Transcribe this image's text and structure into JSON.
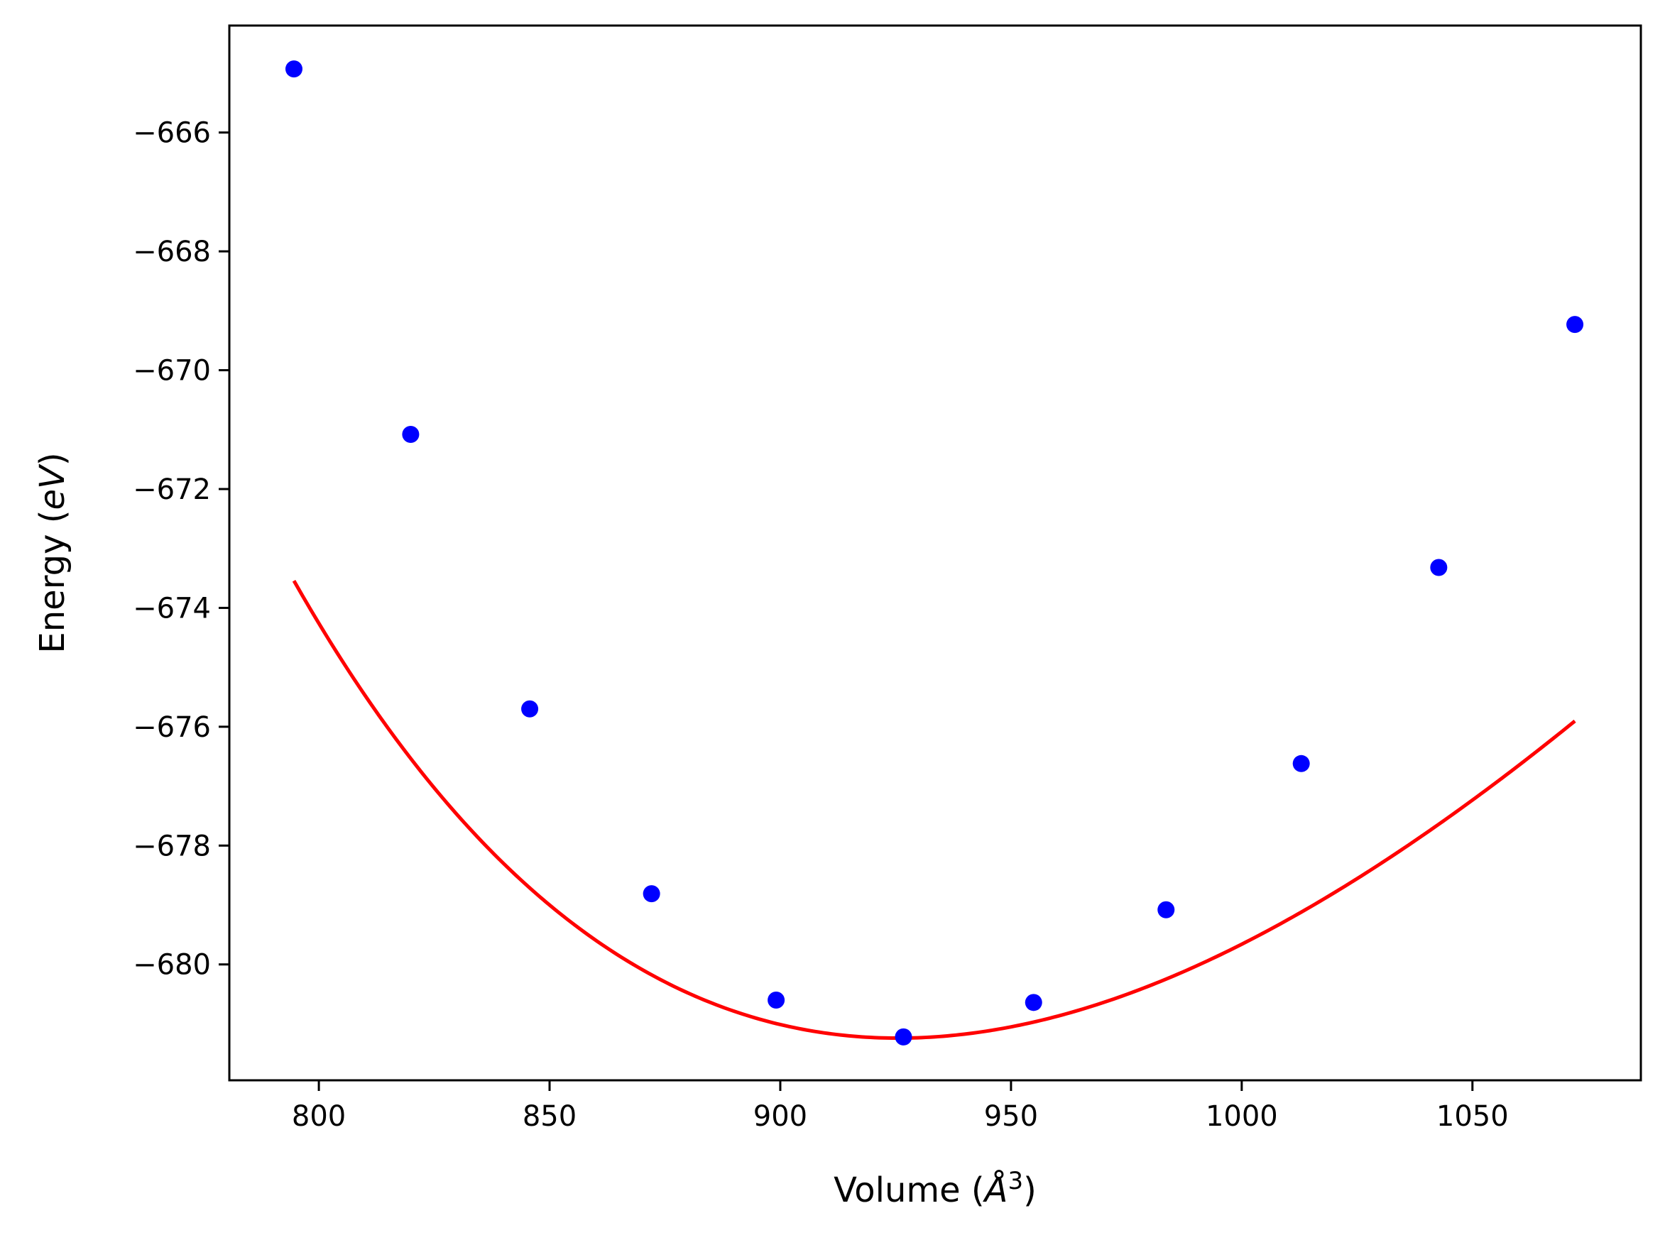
{
  "chart_data": {
    "type": "scatter",
    "xlabel": "Volume (Å³)",
    "ylabel": "Energy (eV)",
    "xlim": [
      780.6,
      1086.5
    ],
    "ylim": [
      -681.95,
      -664.2
    ],
    "x_ticks": [
      800,
      850,
      900,
      950,
      1000,
      1050
    ],
    "y_ticks": [
      -666,
      -668,
      -670,
      -672,
      -674,
      -676,
      -678,
      -680
    ],
    "x_tick_labels": [
      "800",
      "850",
      "900",
      "950",
      "1000",
      "1050"
    ],
    "y_tick_labels": [
      "−666",
      "−668",
      "−670",
      "−672",
      "−674",
      "−676",
      "−678",
      "−680"
    ],
    "grid": false,
    "series": [
      {
        "kind": "points",
        "color": "#0000ff",
        "x": [
          794.6,
          819.9,
          845.7,
          872.1,
          899.1,
          926.7,
          954.9,
          983.6,
          1012.9,
          1042.7,
          1072.2
        ],
        "y": [
          -664.93,
          -671.08,
          -675.7,
          -678.81,
          -680.6,
          -681.22,
          -680.64,
          -679.08,
          -676.62,
          -673.32,
          -669.23
        ]
      },
      {
        "kind": "fit-curve",
        "color": "#ff0000",
        "fit": {
          "E0": -681.24,
          "V0": 925.5,
          "B0": 0.6143,
          "B0_prime": 4.95,
          "x_range": [
            794.6,
            1072.2
          ]
        }
      }
    ]
  }
}
